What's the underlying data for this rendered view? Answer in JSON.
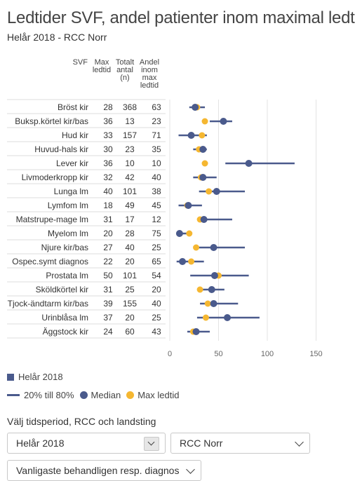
{
  "title": "Ledtider SVF, andel patienter inom maximal ledtid",
  "subtitle": "Helår 2018 - RCC Norr",
  "columns": {
    "svf": "SVF",
    "max": [
      "Max",
      "ledtid"
    ],
    "totalt": [
      "Totalt",
      "antal",
      "(n)"
    ],
    "andel": [
      "Andel",
      "inom",
      "max",
      "ledtid"
    ]
  },
  "chart_data": {
    "type": "dot-range",
    "xlim": [
      0,
      160
    ],
    "xticks": [
      0,
      50,
      100,
      150
    ],
    "rows": [
      {
        "svf": "Bröst kir",
        "max": 28,
        "n": 368,
        "andel": 63,
        "p20": 20,
        "median": 26,
        "p80": 36
      },
      {
        "svf": "Buksp.körtel kir/bas",
        "max": 36,
        "n": 13,
        "andel": 23,
        "p20": 41,
        "median": 55,
        "p80": 64
      },
      {
        "svf": "Hud kir",
        "max": 33,
        "n": 157,
        "andel": 71,
        "p20": 9,
        "median": 22,
        "p80": 38
      },
      {
        "svf": "Huvud-hals kir",
        "max": 30,
        "n": 23,
        "andel": 35,
        "p20": 24,
        "median": 34,
        "p80": 38
      },
      {
        "svf": "Lever kir",
        "max": 36,
        "n": 10,
        "andel": 10,
        "p20": 57,
        "median": 81,
        "p80": 128
      },
      {
        "svf": "Livmoderkropp kir",
        "max": 32,
        "n": 42,
        "andel": 40,
        "p20": 24,
        "median": 34,
        "p80": 48
      },
      {
        "svf": "Lunga lm",
        "max": 40,
        "n": 101,
        "andel": 38,
        "p20": 30,
        "median": 48,
        "p80": 77
      },
      {
        "svf": "Lymfom lm",
        "max": 18,
        "n": 49,
        "andel": 45,
        "p20": 9,
        "median": 19,
        "p80": 33
      },
      {
        "svf": "Matstrupe-mage lm",
        "max": 31,
        "n": 17,
        "andel": 12,
        "p20": 29,
        "median": 35,
        "p80": 64
      },
      {
        "svf": "Myelom lm",
        "max": 20,
        "n": 28,
        "andel": 75,
        "p20": 7,
        "median": 10,
        "p80": 22
      },
      {
        "svf": "Njure kir/bas",
        "max": 27,
        "n": 40,
        "andel": 25,
        "p20": 26,
        "median": 45,
        "p80": 77
      },
      {
        "svf": "Ospec.symt diagnos",
        "max": 22,
        "n": 20,
        "andel": 65,
        "p20": 7,
        "median": 13,
        "p80": 35
      },
      {
        "svf": "Prostata lm",
        "max": 50,
        "n": 101,
        "andel": 54,
        "p20": 21,
        "median": 46,
        "p80": 81
      },
      {
        "svf": "Sköldkörtel kir",
        "max": 31,
        "n": 25,
        "andel": 20,
        "p20": 31,
        "median": 43,
        "p80": 56
      },
      {
        "svf": "Tjock-ändtarm kir/bas",
        "max": 39,
        "n": 155,
        "andel": 40,
        "p20": 31,
        "median": 45,
        "p80": 70
      },
      {
        "svf": "Urinblåsa lm",
        "max": 37,
        "n": 20,
        "andel": 25,
        "p20": 28,
        "median": 59,
        "p80": 92
      },
      {
        "svf": "Äggstock kir",
        "max": 24,
        "n": 60,
        "andel": 43,
        "p20": 18,
        "median": 27,
        "p80": 41
      }
    ]
  },
  "colors": {
    "range": "#4a5a8c",
    "median": "#4a5a8c",
    "max": "#f5b731",
    "grid": "#e3e3e3",
    "rowline": "#dcdcdc"
  },
  "legend": {
    "period": "Helår 2018",
    "range": "20% till 80%",
    "median": "Median",
    "max": "Max ledtid"
  },
  "filters": {
    "label": "Välj tidsperiod, RCC och landsting",
    "period_value": "Helår 2018",
    "rcc_value": "RCC Norr",
    "diagnos_value": "Vanligaste behandligen resp. diagnos"
  }
}
